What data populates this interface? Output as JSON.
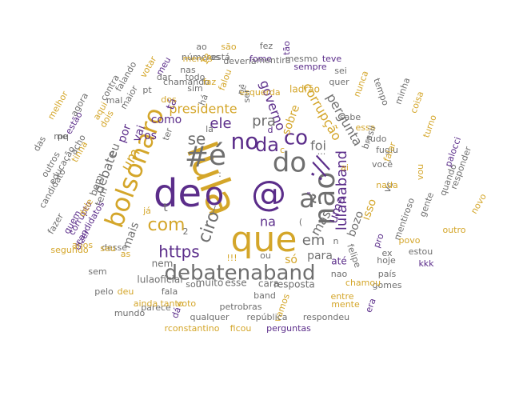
{
  "palette": {
    "purple": "#5b2d8a",
    "gold": "#d4a62a",
    "gray": "#6f6f6f"
  },
  "words": [
    {
      "t": "que",
      "c": "gold",
      "s": 44,
      "r": 0
    },
    {
      "t": "lula",
      "c": "gold",
      "s": 52,
      "r": 70
    },
    {
      "t": "de",
      "c": "purple",
      "s": 48,
      "r": 0
    },
    {
      "t": "o",
      "c": "purple",
      "s": 40,
      "r": 0
    },
    {
      "t": "@",
      "c": "purple",
      "s": 44,
      "r": 0
    },
    {
      "t": "é",
      "c": "gray",
      "s": 36,
      "r": 0
    },
    {
      "t": "#",
      "c": "gray",
      "s": 36,
      "r": 0
    },
    {
      "t": "não",
      "c": "gray",
      "s": 36,
      "r": -90
    },
    {
      "t": "do",
      "c": "gray",
      "s": 34,
      "r": 0
    },
    {
      "t": "a",
      "c": "gray",
      "s": 32,
      "r": 0
    },
    {
      "t": "bolsonaro",
      "c": "gold",
      "s": 32,
      "r": -70
    },
    {
      "t": "debatenaband",
      "c": "gray",
      "s": 26,
      "r": 0
    },
    {
      "t": "://",
      "c": "purple",
      "s": 28,
      "r": -60
    },
    {
      "t": "no",
      "c": "purple",
      "s": 28,
      "r": 0
    },
    {
      "t": "da",
      "c": "purple",
      "s": 24,
      "r": 0
    },
    {
      "t": "co",
      "c": "purple",
      "s": 26,
      "r": 0
    },
    {
      "t": "com",
      "c": "gold",
      "s": 22,
      "r": 0
    },
    {
      "t": "ciro",
      "c": "gray",
      "s": 22,
      "r": -70
    },
    {
      "t": "https",
      "c": "purple",
      "s": 20,
      "r": 0
    },
    {
      "t": "lulanaband",
      "c": "purple",
      "s": 18,
      "r": -90
    },
    {
      "t": "se",
      "c": "gray",
      "s": 20,
      "r": 0
    },
    {
      "t": "pra",
      "c": "gray",
      "s": 18,
      "r": 0
    },
    {
      "t": "ele",
      "c": "purple",
      "s": 18,
      "r": 0
    },
    {
      "t": "um",
      "c": "gold",
      "s": 18,
      "r": -60
    },
    {
      "t": "em",
      "c": "gray",
      "s": 18,
      "r": 0
    },
    {
      "t": "presidente",
      "c": "gold",
      "s": 16,
      "r": 0
    },
    {
      "t": "governo",
      "c": "purple",
      "s": 16,
      "r": 70
    },
    {
      "t": "corrupção",
      "c": "gold",
      "s": 16,
      "r": 60
    },
    {
      "t": "pergunta",
      "c": "gray",
      "s": 16,
      "r": 60
    },
    {
      "t": "foi",
      "c": "gray",
      "s": 16,
      "r": 0
    },
    {
      "t": "uma",
      "c": "purple",
      "s": 16,
      "r": -70
    },
    {
      "t": "mas",
      "c": "gray",
      "s": 16,
      "r": -60
    },
    {
      "t": "na",
      "c": "purple",
      "s": 16,
      "r": 0
    },
    {
      "t": "como",
      "c": "purple",
      "s": 14,
      "r": 0
    },
    {
      "t": "mais",
      "c": "gray",
      "s": 14,
      "r": -70
    },
    {
      "t": "debate",
      "c": "gray",
      "s": 16,
      "r": -70
    },
    {
      "t": "bozo",
      "c": "gray",
      "s": 14,
      "r": -70
    },
    {
      "t": "isso",
      "c": "gold",
      "s": 14,
      "r": -70
    },
    {
      "t": "por",
      "c": "purple",
      "s": 14,
      "r": -70
    },
    {
      "t": "vai",
      "c": "purple",
      "s": 14,
      "r": -70
    },
    {
      "t": "eu",
      "c": "gray",
      "s": 14,
      "r": -70
    },
    {
      "t": "os",
      "c": "purple",
      "s": 14,
      "r": 0
    },
    {
      "t": "sobre",
      "c": "gold",
      "s": 14,
      "r": -70
    },
    {
      "t": "para",
      "c": "gray",
      "s": 14,
      "r": 0
    },
    {
      "t": "só",
      "c": "gold",
      "s": 14,
      "r": 0
    },
    {
      "t": "até",
      "c": "purple",
      "s": 12,
      "r": 0
    },
    {
      "t": "nem",
      "c": "gray",
      "s": 12,
      "r": 0
    },
    {
      "t": "t",
      "c": "gray",
      "s": 14,
      "r": 0
    },
    {
      "t": "tá",
      "c": "purple",
      "s": 14,
      "r": -70
    },
    {
      "t": "muito",
      "c": "gray",
      "s": 12,
      "r": 0
    },
    {
      "t": "esse",
      "c": "gray",
      "s": 12,
      "r": 0
    },
    {
      "t": "cara",
      "c": "gray",
      "s": 12,
      "r": 0
    },
    {
      "t": "resposta",
      "c": "gray",
      "s": 12,
      "r": 0
    },
    {
      "t": "lulaoficial",
      "c": "gray",
      "s": 12,
      "r": 0
    },
    {
      "t": "ladrão",
      "c": "gold",
      "s": 12,
      "r": 0
    },
    {
      "t": "bem",
      "c": "gray",
      "s": 12,
      "r": -70
    },
    {
      "t": "tem",
      "c": "gray",
      "s": 12,
      "r": -70
    },
    {
      "t": "vc",
      "c": "gray",
      "s": 12,
      "r": -70
    },
    {
      "t": "você",
      "c": "gray",
      "s": 11,
      "r": 0
    },
    {
      "t": "quer",
      "c": "gray",
      "s": 11,
      "r": 0
    },
    {
      "t": "nunca",
      "c": "gold",
      "s": 11,
      "r": -70
    },
    {
      "t": "sabe",
      "c": "gray",
      "s": 11,
      "r": 0
    },
    {
      "t": "essa",
      "c": "gold",
      "s": 11,
      "r": 0
    },
    {
      "t": "tudo",
      "c": "gray",
      "s": 11,
      "r": 0
    },
    {
      "t": "fugiu",
      "c": "gray",
      "s": 11,
      "r": 0
    },
    {
      "t": "brasil",
      "c": "gray",
      "s": 11,
      "r": -70
    },
    {
      "t": "falar",
      "c": "gold",
      "s": 11,
      "r": -70
    },
    {
      "t": "mentiroso",
      "c": "gray",
      "s": 11,
      "r": -70
    },
    {
      "t": "gente",
      "c": "gray",
      "s": 11,
      "r": -70
    },
    {
      "t": "quando",
      "c": "gray",
      "s": 11,
      "r": -70
    },
    {
      "t": "responder",
      "c": "gray",
      "s": 11,
      "r": -70
    },
    {
      "t": "palocci",
      "c": "purple",
      "s": 11,
      "r": -70
    },
    {
      "t": "turno",
      "c": "gold",
      "s": 11,
      "r": -70
    },
    {
      "t": "coisa",
      "c": "gold",
      "s": 11,
      "r": -70
    },
    {
      "t": "minha",
      "c": "gray",
      "s": 11,
      "r": -70
    },
    {
      "t": "tempo",
      "c": "gray",
      "s": 11,
      "r": 70
    },
    {
      "t": "felipe",
      "c": "gray",
      "s": 11,
      "r": 70
    },
    {
      "t": "pro",
      "c": "purple",
      "s": 11,
      "r": -70
    },
    {
      "t": "povo",
      "c": "gold",
      "s": 11,
      "r": 0
    },
    {
      "t": "hoje",
      "c": "gray",
      "s": 11,
      "r": 0
    },
    {
      "t": "estou",
      "c": "gray",
      "s": 11,
      "r": 0
    },
    {
      "t": "kkk",
      "c": "purple",
      "s": 11,
      "r": 0
    },
    {
      "t": "outro",
      "c": "gold",
      "s": 11,
      "r": 0
    },
    {
      "t": "novo",
      "c": "gold",
      "s": 11,
      "r": -60
    },
    {
      "t": "vou",
      "c": "gold",
      "s": 11,
      "r": -90
    },
    {
      "t": "nada",
      "c": "gold",
      "s": 11,
      "r": 0
    },
    {
      "t": "ex",
      "c": "gray",
      "s": 11,
      "r": 0
    },
    {
      "t": "país",
      "c": "gray",
      "s": 11,
      "r": 0
    },
    {
      "t": "gomes",
      "c": "gray",
      "s": 11,
      "r": 0
    },
    {
      "t": "nao",
      "c": "gray",
      "s": 11,
      "r": 0
    },
    {
      "t": "entre",
      "c": "gold",
      "s": 11,
      "r": 0
    },
    {
      "t": "mente",
      "c": "gold",
      "s": 11,
      "r": 0
    },
    {
      "t": "chamou",
      "c": "gold",
      "s": 11,
      "r": 0
    },
    {
      "t": "era",
      "c": "purple",
      "s": 11,
      "r": -70
    },
    {
      "t": "vamos",
      "c": "gold",
      "s": 11,
      "r": -70
    },
    {
      "t": "petrobras",
      "c": "gray",
      "s": 11,
      "r": 0
    },
    {
      "t": "band",
      "c": "gray",
      "s": 11,
      "r": 0
    },
    {
      "t": "respondeu",
      "c": "gray",
      "s": 11,
      "r": 0
    },
    {
      "t": "qualquer",
      "c": "gray",
      "s": 11,
      "r": 0
    },
    {
      "t": "república",
      "c": "gray",
      "s": 11,
      "r": 0
    },
    {
      "t": "perguntas",
      "c": "purple",
      "s": 11,
      "r": 0
    },
    {
      "t": "ficou",
      "c": "gold",
      "s": 11,
      "r": 0
    },
    {
      "t": "rconstantino",
      "c": "gold",
      "s": 11,
      "r": 0
    },
    {
      "t": "mundo",
      "c": "gray",
      "s": 11,
      "r": 0
    },
    {
      "t": "parece",
      "c": "gray",
      "s": 11,
      "r": 0
    },
    {
      "t": "dá",
      "c": "purple",
      "s": 11,
      "r": -70
    },
    {
      "t": "voto",
      "c": "gold",
      "s": 11,
      "r": 0
    },
    {
      "t": "tanto",
      "c": "gold",
      "s": 11,
      "r": 0
    },
    {
      "t": "ainda",
      "c": "gold",
      "s": 11,
      "r": 0
    },
    {
      "t": "deu",
      "c": "gold",
      "s": 11,
      "r": 0
    },
    {
      "t": "fala",
      "c": "gray",
      "s": 11,
      "r": 0
    },
    {
      "t": "sou",
      "c": "gray",
      "s": 11,
      "r": 0
    },
    {
      "t": "pelo",
      "c": "gray",
      "s": 11,
      "r": 0
    },
    {
      "t": "sem",
      "c": "gray",
      "s": 11,
      "r": 0
    },
    {
      "t": "segundo",
      "c": "gold",
      "s": 11,
      "r": 0
    },
    {
      "t": "desse",
      "c": "gray",
      "s": 11,
      "r": 0
    },
    {
      "t": "dizer",
      "c": "purple",
      "s": 11,
      "r": -60
    },
    {
      "t": "seu",
      "c": "gold",
      "s": 11,
      "r": 0
    },
    {
      "t": "anos",
      "c": "gold",
      "s": 11,
      "r": 0
    },
    {
      "t": "quem",
      "c": "purple",
      "s": 11,
      "r": -60
    },
    {
      "t": "fazer",
      "c": "gray",
      "s": 11,
      "r": -60
    },
    {
      "t": "corrupto",
      "c": "purple",
      "s": 11,
      "r": -60
    },
    {
      "t": "dele",
      "c": "gold",
      "s": 11,
      "r": -60
    },
    {
      "t": "candidatos",
      "c": "purple",
      "s": 11,
      "r": -60
    },
    {
      "t": "candidato",
      "c": "gray",
      "s": 11,
      "r": -60
    },
    {
      "t": "educação",
      "c": "gray",
      "s": 11,
      "r": -60
    },
    {
      "t": "outros",
      "c": "gray",
      "s": 11,
      "r": -60
    },
    {
      "t": "das",
      "c": "gray",
      "s": 11,
      "r": -60
    },
    {
      "t": "tinha",
      "c": "gold",
      "s": 11,
      "r": -60
    },
    {
      "t": "me",
      "c": "gray",
      "s": 11,
      "r": 0
    },
    {
      "t": "acho",
      "c": "gray",
      "s": 11,
      "r": -60
    },
    {
      "t": "estão",
      "c": "purple",
      "s": 11,
      "r": -60
    },
    {
      "t": "pq",
      "c": "gray",
      "s": 11,
      "r": 0
    },
    {
      "t": "melhor",
      "c": "gold",
      "s": 11,
      "r": -60
    },
    {
      "t": "agora",
      "c": "gray",
      "s": 11,
      "r": -60
    },
    {
      "t": "mal",
      "c": "gray",
      "s": 11,
      "r": 0
    },
    {
      "t": "aqui",
      "c": "gold",
      "s": 11,
      "r": -60
    },
    {
      "t": "dois",
      "c": "gold",
      "s": 11,
      "r": -60
    },
    {
      "t": "maior",
      "c": "gray",
      "s": 11,
      "r": -60
    },
    {
      "t": "contra",
      "c": "gray",
      "s": 11,
      "r": -60
    },
    {
      "t": "falando",
      "c": "gray",
      "s": 11,
      "r": -60
    },
    {
      "t": "pt",
      "c": "gray",
      "s": 11,
      "r": 0
    },
    {
      "t": "votar",
      "c": "gold",
      "s": 11,
      "r": -60
    },
    {
      "t": "meu",
      "c": "purple",
      "s": 11,
      "r": -60
    },
    {
      "t": "dar",
      "c": "gray",
      "s": 11,
      "r": 0
    },
    {
      "t": "sim",
      "c": "gray",
      "s": 11,
      "r": 0
    },
    {
      "t": "todo",
      "c": "gray",
      "s": 11,
      "r": 0
    },
    {
      "t": "nas",
      "c": "gray",
      "s": 11,
      "r": 0
    },
    {
      "t": "números",
      "c": "gray",
      "s": 11,
      "r": 0
    },
    {
      "t": "está",
      "c": "gray",
      "s": 11,
      "r": 0
    },
    {
      "t": "ao",
      "c": "gray",
      "s": 11,
      "r": 0
    },
    {
      "t": "são",
      "c": "gold",
      "s": 11,
      "r": 0
    },
    {
      "t": "fez",
      "c": "gray",
      "s": 11,
      "r": 0
    },
    {
      "t": "mesmo",
      "c": "gray",
      "s": 11,
      "r": 0
    },
    {
      "t": "teve",
      "c": "purple",
      "s": 11,
      "r": 0
    },
    {
      "t": "sempre",
      "c": "purple",
      "s": 11,
      "r": 0
    },
    {
      "t": "sei",
      "c": "gray",
      "s": 11,
      "r": 0
    },
    {
      "t": "esquerda",
      "c": "gold",
      "s": 11,
      "r": 0
    },
    {
      "t": "tão",
      "c": "purple",
      "s": 11,
      "r": -90
    },
    {
      "t": "menos",
      "c": "gold",
      "s": 11,
      "r": 0
    },
    {
      "t": "deveria",
      "c": "gray",
      "s": 11,
      "r": 0
    },
    {
      "t": "fome",
      "c": "purple",
      "s": 11,
      "r": 0
    },
    {
      "t": "mentira",
      "c": "gray",
      "s": 11,
      "r": 0
    },
    {
      "t": "chamando",
      "c": "gray",
      "s": 11,
      "r": 0
    },
    {
      "t": "faz",
      "c": "gold",
      "s": 11,
      "r": 0
    },
    {
      "t": "dos",
      "c": "gold",
      "s": 11,
      "r": 0
    },
    {
      "t": "ser",
      "c": "gray",
      "s": 11,
      "r": -90
    },
    {
      "t": "falou",
      "c": "gold",
      "s": 11,
      "r": -70
    },
    {
      "t": "nê",
      "c": "gray",
      "s": 11,
      "r": -70
    },
    {
      "t": "13",
      "c": "gold",
      "s": 11,
      "r": -60
    },
    {
      "t": "há",
      "c": "gray",
      "s": 11,
      "r": -70
    },
    {
      "t": "ter",
      "c": "gray",
      "s": 11,
      "r": -70
    },
    {
      "t": "lá",
      "c": "gray",
      "s": 11,
      "r": 0
    },
    {
      "t": "d",
      "c": "purple",
      "s": 11,
      "r": 0
    },
    {
      "t": "c",
      "c": "gold",
      "s": 11,
      "r": 0
    },
    {
      "t": "ai",
      "c": "gold",
      "s": 11,
      "r": 0
    },
    {
      "t": "já",
      "c": "gold",
      "s": 11,
      "r": 0
    },
    {
      "t": "as",
      "c": "gold",
      "s": 11,
      "r": 0
    },
    {
      "t": "2",
      "c": "gray",
      "s": 11,
      "r": 0
    },
    {
      "t": "!!!",
      "c": "gold",
      "s": 11,
      "r": 0
    },
    {
      "t": "ou",
      "c": "gray",
      "s": 11,
      "r": 0
    },
    {
      "t": "n",
      "c": "gray",
      "s": 11,
      "r": 0
    },
    {
      "t": "/",
      "c": "gray",
      "s": 11,
      "r": 0
    },
    {
      "t": "(",
      "c": "gray",
      "s": 11,
      "r": 0
    },
    {
      "t": "\"",
      "c": "purple",
      "s": 11,
      "r": 0
    },
    {
      "t": ":",
      "c": "gray",
      "s": 11,
      "r": 0
    },
    {
      "t": "...",
      "c": "gray",
      "s": 11,
      "r": 0
    },
    {
      "t": "-",
      "c": "gray",
      "s": 11,
      "r": 0
    }
  ]
}
